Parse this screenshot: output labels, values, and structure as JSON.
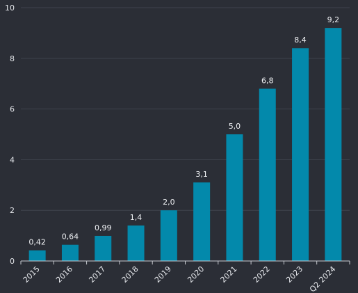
{
  "chart_data": {
    "type": "bar",
    "categories": [
      "2015",
      "2016",
      "2017",
      "2018",
      "2019",
      "2020",
      "2021",
      "2022",
      "2023",
      "Q2 2024"
    ],
    "values": [
      0.42,
      0.64,
      0.99,
      1.4,
      2.0,
      3.1,
      5.0,
      6.8,
      8.4,
      9.2
    ],
    "data_labels": [
      "0,42",
      "0,64",
      "0,99",
      "1,4",
      "2,0",
      "3,1",
      "5,0",
      "6,8",
      "8,4",
      "9,2"
    ],
    "yticks": [
      0,
      2,
      4,
      6,
      8,
      10
    ],
    "ylim": [
      0,
      10
    ],
    "grid": true,
    "bar_color": "#0389ab",
    "title": "",
    "xlabel": "",
    "ylabel": ""
  }
}
